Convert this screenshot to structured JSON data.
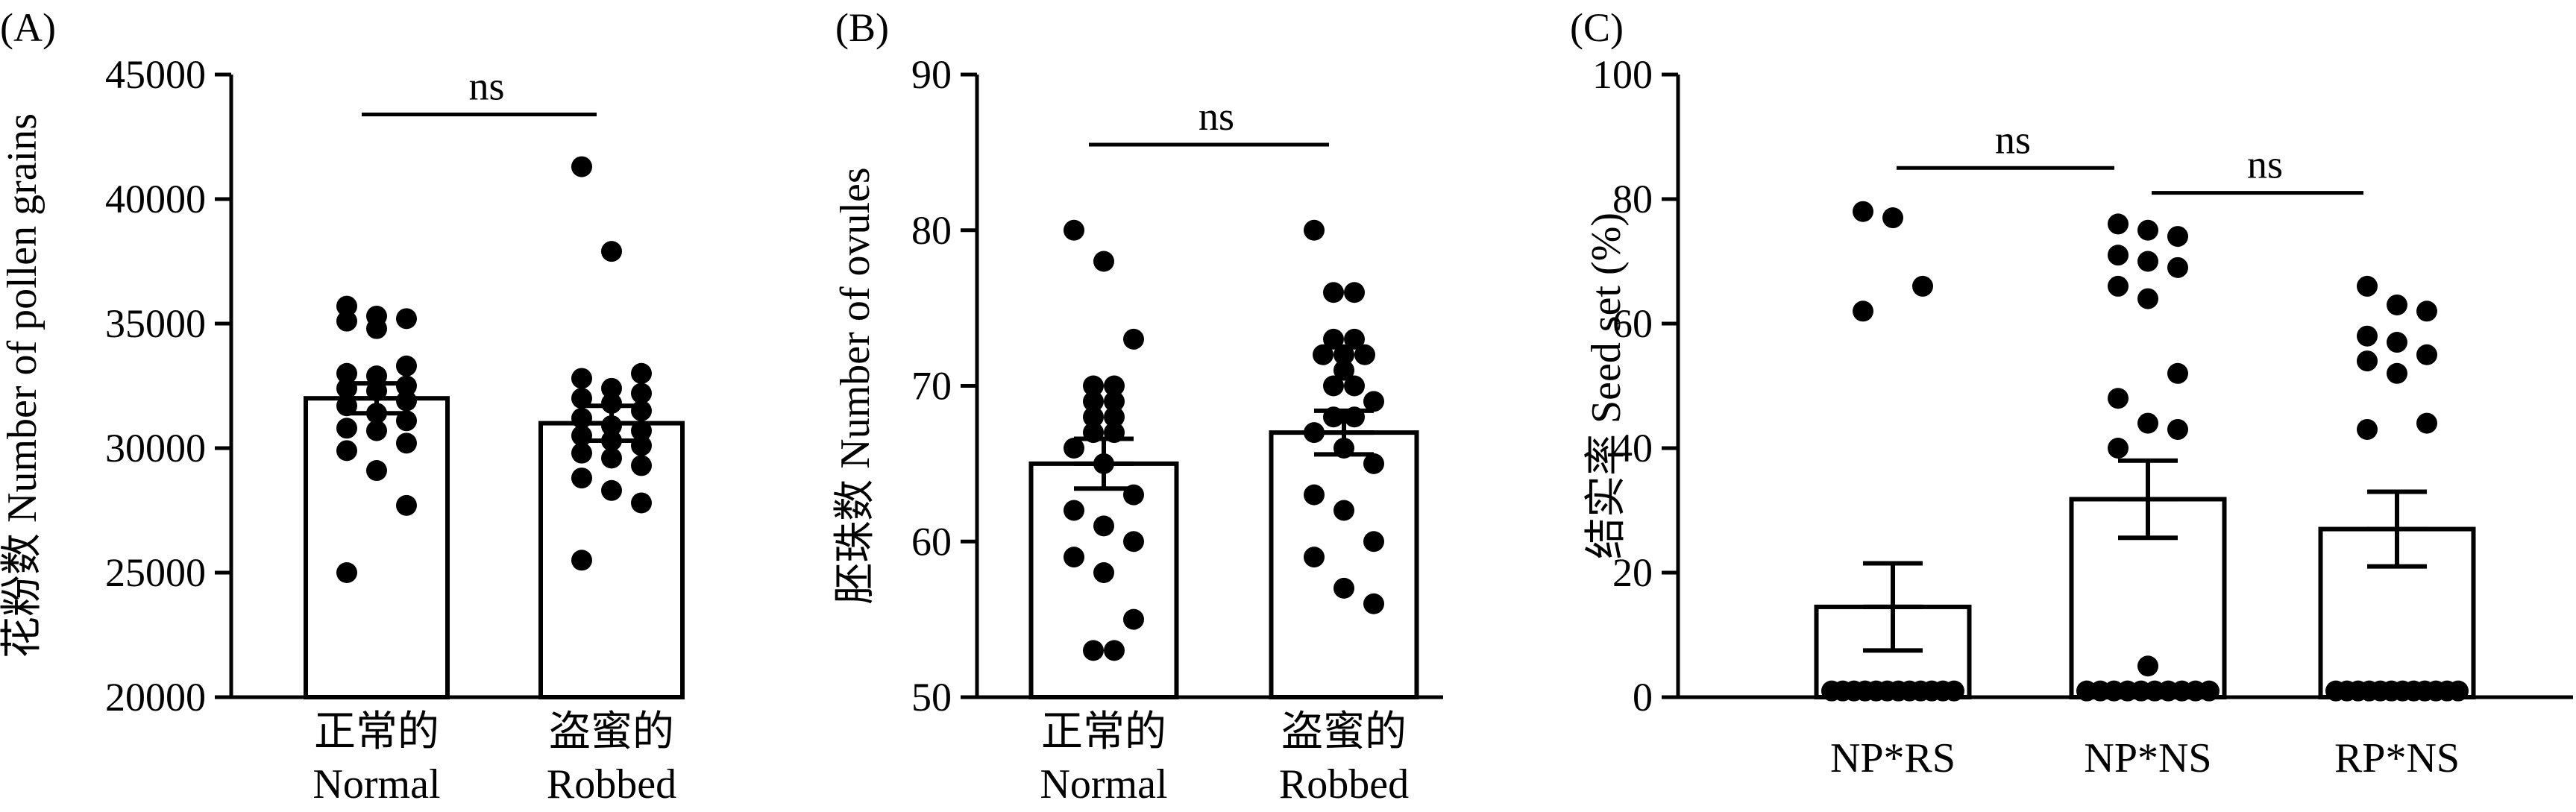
{
  "chart_data": [
    {
      "type": "bar",
      "panel_label": "(A)",
      "ylabel": "花粉数 Number of pollen grains",
      "ylim": [
        20000,
        45000
      ],
      "yticks": [
        20000,
        25000,
        30000,
        35000,
        40000,
        45000
      ],
      "categories": [
        {
          "zh": "正常的",
          "en": "Normal"
        },
        {
          "zh": "盗蜜的",
          "en": "Robbed"
        }
      ],
      "means": [
        32000,
        31000
      ],
      "sem": [
        600,
        700
      ],
      "points": [
        [
          35700,
          35300,
          35200,
          35100,
          34800,
          33300,
          33000,
          32900,
          32500,
          32400,
          32300,
          31900,
          31700,
          31400,
          31100,
          30800,
          30700,
          30200,
          29900,
          29100,
          27700,
          25000
        ],
        [
          41300,
          37900,
          33000,
          32800,
          32400,
          32200,
          32000,
          31800,
          31500,
          31200,
          30900,
          30700,
          30500,
          30300,
          30100,
          29800,
          29600,
          29300,
          28800,
          28300,
          27800,
          25500
        ]
      ],
      "comparisons": [
        {
          "from": 0,
          "to": 1,
          "label": "ns",
          "y": 43400
        }
      ]
    },
    {
      "type": "bar",
      "panel_label": "(B)",
      "ylabel": "胚珠数 Number of ovules",
      "ylim": [
        50,
        90
      ],
      "yticks": [
        50,
        60,
        70,
        80,
        90
      ],
      "categories": [
        {
          "zh": "正常的",
          "en": "Normal"
        },
        {
          "zh": "盗蜜的",
          "en": "Robbed"
        }
      ],
      "means": [
        65,
        67
      ],
      "sem": [
        1.6,
        1.4
      ],
      "points": [
        [
          80,
          78,
          73,
          70,
          70,
          69,
          69,
          68,
          68,
          67,
          67,
          66,
          65,
          63,
          62,
          61,
          60,
          59,
          58,
          55,
          53,
          53
        ],
        [
          80,
          76,
          76,
          73,
          73,
          72,
          72,
          72,
          71,
          70,
          70,
          69,
          68,
          68,
          67,
          66,
          65,
          63,
          62,
          60,
          59,
          57,
          56
        ]
      ],
      "comparisons": [
        {
          "from": 0,
          "to": 1,
          "label": "ns",
          "y": 85.5
        }
      ]
    },
    {
      "type": "bar",
      "panel_label": "(C)",
      "ylabel": "结实率 Seed set (%)",
      "ylim": [
        0,
        100
      ],
      "yticks": [
        0,
        20,
        40,
        60,
        80,
        100
      ],
      "categories": [
        "NP*RS",
        "NP*NS",
        "RP*NS"
      ],
      "means": [
        14.5,
        31.8,
        27
      ],
      "sem": [
        7,
        6.2,
        6
      ],
      "points": [
        [
          78,
          77,
          66,
          62,
          1,
          1,
          1,
          1,
          1,
          1,
          1,
          1,
          1,
          1,
          1,
          1
        ],
        [
          76,
          75,
          74,
          71,
          70,
          69,
          66,
          64,
          52,
          48,
          44,
          43,
          40,
          5,
          1,
          1,
          1,
          1,
          1,
          1,
          1,
          1,
          1,
          1
        ],
        [
          66,
          63,
          62,
          58,
          57,
          55,
          54,
          52,
          44,
          43,
          1,
          1,
          1,
          1,
          1,
          1,
          1,
          1,
          1,
          1,
          1,
          1
        ]
      ],
      "comparisons": [
        {
          "from": 0,
          "to": 1,
          "label": "ns",
          "y": 85
        },
        {
          "from": 1,
          "to": 2,
          "label": "ns",
          "y": 81
        }
      ]
    }
  ]
}
